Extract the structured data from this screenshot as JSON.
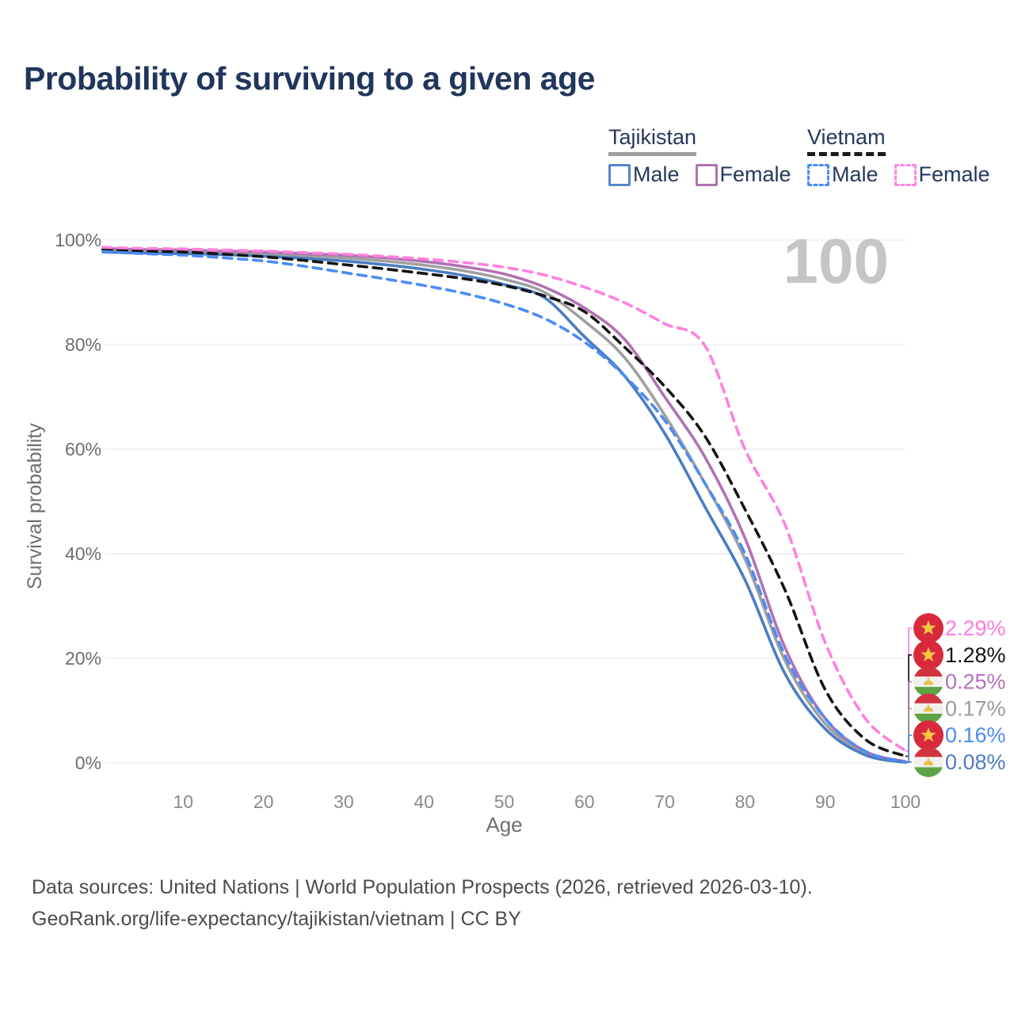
{
  "title": "Probability of surviving to a given age",
  "watermark": "100",
  "legend": {
    "groups": [
      {
        "name": "Tajikistan",
        "line_style": "solid",
        "rule_color": "#9e9e9e",
        "items": [
          {
            "label": "Male",
            "color": "#5585c8"
          },
          {
            "label": "Female",
            "color": "#b172b1"
          }
        ]
      },
      {
        "name": "Vietnam",
        "line_style": "dashed",
        "rule_color": "#1a1a1a",
        "items": [
          {
            "label": "Male",
            "color": "#4b8cf5"
          },
          {
            "label": "Female",
            "color": "#ff85e3"
          }
        ]
      }
    ]
  },
  "chart_data": {
    "type": "line",
    "title": "Probability of surviving to a given age",
    "xlabel": "Age",
    "ylabel": "Survival probability",
    "xlim": [
      0,
      100
    ],
    "ylim": [
      0,
      100
    ],
    "x_ticks": [
      10,
      20,
      30,
      40,
      50,
      60,
      70,
      80,
      90,
      100
    ],
    "y_ticks": [
      0,
      20,
      40,
      60,
      80,
      100
    ],
    "y_tick_suffix": "%",
    "grid": "horizontal",
    "ages": [
      0,
      5,
      10,
      15,
      20,
      25,
      30,
      35,
      40,
      45,
      50,
      55,
      60,
      65,
      70,
      75,
      80,
      85,
      90,
      95,
      100
    ],
    "series": [
      {
        "name": "Tajikistan",
        "country": "Tajikistan",
        "sex": "both",
        "color": "#a0a0a0",
        "dash": false,
        "values": [
          98.1,
          97.9,
          97.7,
          97.5,
          97.3,
          97.0,
          96.6,
          96.0,
          95.2,
          94.1,
          92.5,
          90.0,
          84.5,
          77.5,
          66.5,
          53.5,
          39.0,
          19.5,
          7.5,
          1.9,
          0.17
        ],
        "end_label": "0.17%"
      },
      {
        "name": "Tajikistan Female",
        "country": "Tajikistan",
        "sex": "female",
        "color": "#b172b1",
        "dash": false,
        "values": [
          98.4,
          98.2,
          98.1,
          97.9,
          97.7,
          97.4,
          97.1,
          96.6,
          95.9,
          94.9,
          93.5,
          91.0,
          87.0,
          81.0,
          70.0,
          58.5,
          43.0,
          22.0,
          8.5,
          2.2,
          0.25
        ],
        "end_label": "0.25%"
      },
      {
        "name": "Tajikistan Male",
        "country": "Tajikistan",
        "sex": "male",
        "color": "#4a7dc2",
        "dash": false,
        "values": [
          97.7,
          97.5,
          97.4,
          97.2,
          96.9,
          96.5,
          96.0,
          95.3,
          94.4,
          93.2,
          91.5,
          89.0,
          81.5,
          74.0,
          63.0,
          49.0,
          35.0,
          17.0,
          6.5,
          1.5,
          0.08
        ],
        "end_label": "0.08%"
      },
      {
        "name": "Vietnam",
        "country": "Vietnam",
        "sex": "both",
        "color": "#141414",
        "dash": true,
        "values": [
          98.2,
          97.9,
          97.7,
          97.3,
          96.8,
          96.1,
          95.3,
          94.5,
          93.6,
          92.6,
          91.3,
          89.3,
          86.3,
          79.5,
          72.0,
          62.5,
          48.5,
          33.0,
          14.0,
          4.5,
          1.28
        ],
        "end_label": "1.28%"
      },
      {
        "name": "Vietnam Male",
        "country": "Vietnam",
        "sex": "male",
        "color": "#4b8cf5",
        "dash": true,
        "values": [
          97.8,
          97.4,
          97.1,
          96.6,
          96.0,
          95.0,
          93.8,
          92.6,
          91.3,
          89.8,
          87.8,
          85.0,
          80.5,
          74.0,
          65.5,
          53.5,
          40.0,
          20.5,
          8.5,
          2.2,
          0.16
        ],
        "end_label": "0.16%"
      },
      {
        "name": "Vietnam Female",
        "country": "Vietnam",
        "sex": "female",
        "color": "#ff80df",
        "dash": true,
        "values": [
          98.6,
          98.4,
          98.3,
          98.1,
          97.9,
          97.6,
          97.3,
          96.9,
          96.4,
          95.7,
          94.8,
          93.3,
          91.0,
          88.0,
          84.0,
          79.8,
          60.0,
          45.5,
          23.0,
          8.5,
          2.29
        ],
        "end_label": "2.29%"
      }
    ],
    "end_labels": [
      {
        "value": "2.29%",
        "series": "Vietnam Female",
        "flag": "vn",
        "color": "#ff7ade"
      },
      {
        "value": "1.28%",
        "series": "Vietnam",
        "flag": "vn",
        "color": "#141414"
      },
      {
        "value": "0.25%",
        "series": "Tajikistan Female",
        "flag": "tj",
        "color": "#b671b6"
      },
      {
        "value": "0.17%",
        "series": "Tajikistan",
        "flag": "tj",
        "color": "#9a9a9a"
      },
      {
        "value": "0.16%",
        "series": "Vietnam Male",
        "flag": "vn",
        "color": "#4b8cf5"
      },
      {
        "value": "0.08%",
        "series": "Tajikistan Male",
        "flag": "tj",
        "color": "#4a7dc2"
      }
    ]
  },
  "footer": {
    "line1": "Data sources: United Nations | World Population Prospects (2026, retrieved 2026-03-10).",
    "line2": "GeoRank.org/life-expectancy/tajikistan/vietnam | CC BY"
  }
}
